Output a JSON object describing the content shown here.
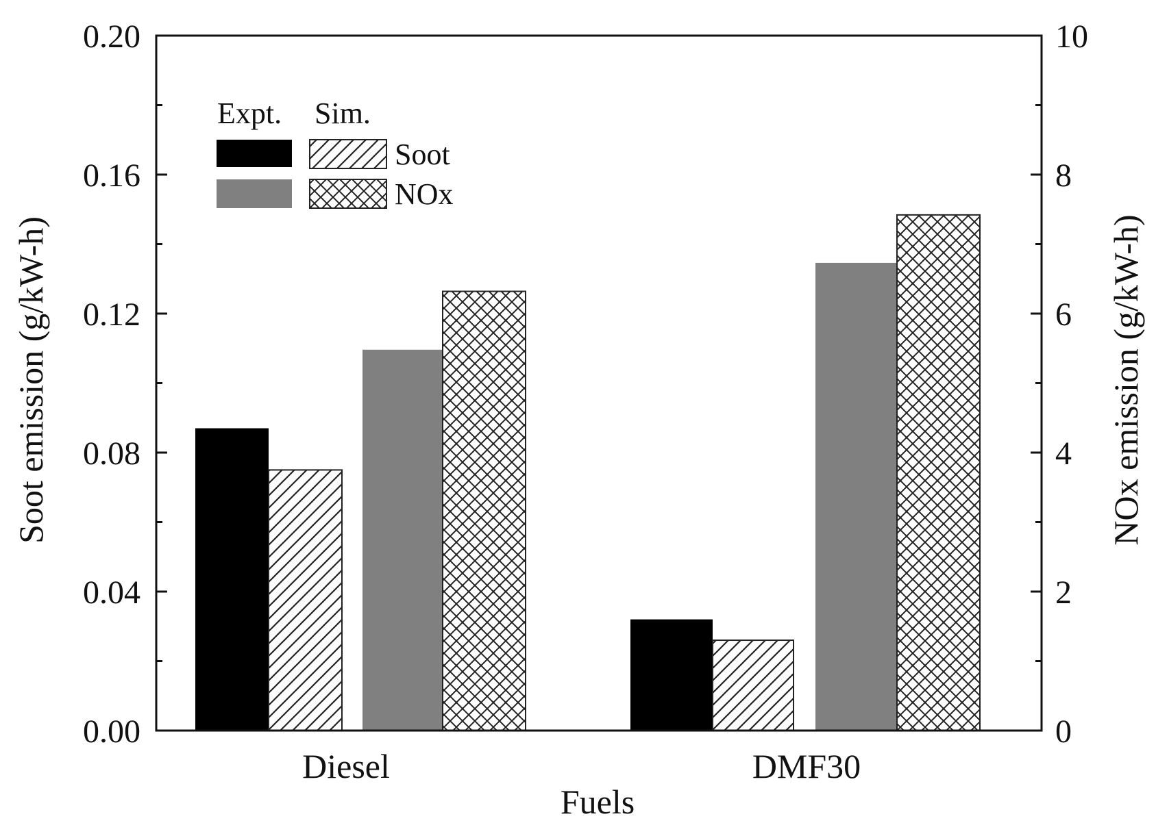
{
  "chart_data": {
    "type": "bar",
    "xlabel": "Fuels",
    "categories": [
      "Diesel",
      "DMF30"
    ],
    "left_axis": {
      "label": "Soot emission (g/kW-h)",
      "ylim": [
        0,
        0.2
      ],
      "ticks": [
        "0.00",
        "0.04",
        "0.08",
        "0.12",
        "0.16",
        "0.20"
      ]
    },
    "right_axis": {
      "label": "NOx emission (g/kW-h)",
      "ylim": [
        0,
        10
      ],
      "ticks": [
        "0",
        "2",
        "4",
        "6",
        "8",
        "10"
      ]
    },
    "series": [
      {
        "name": "Soot Expt.",
        "axis": "left",
        "style": "solid-black",
        "values": [
          0.087,
          0.032
        ]
      },
      {
        "name": "Soot Sim.",
        "axis": "left",
        "style": "hatch-diagonal",
        "values": [
          0.075,
          0.026
        ]
      },
      {
        "name": "NOx Expt.",
        "axis": "right",
        "style": "solid-gray",
        "values": [
          5.48,
          6.73
        ]
      },
      {
        "name": "NOx Sim.",
        "axis": "right",
        "style": "hatch-cross",
        "values": [
          6.32,
          7.42
        ]
      }
    ],
    "legend": {
      "position": "top-left",
      "header_expt": "Expt.",
      "header_sim": "Sim.",
      "rows": [
        "Soot",
        "NOx"
      ]
    },
    "colors": {
      "black_bar": "#000000",
      "gray_bar": "#808080",
      "axis": "#111111",
      "hatch_line": "#222222"
    }
  }
}
